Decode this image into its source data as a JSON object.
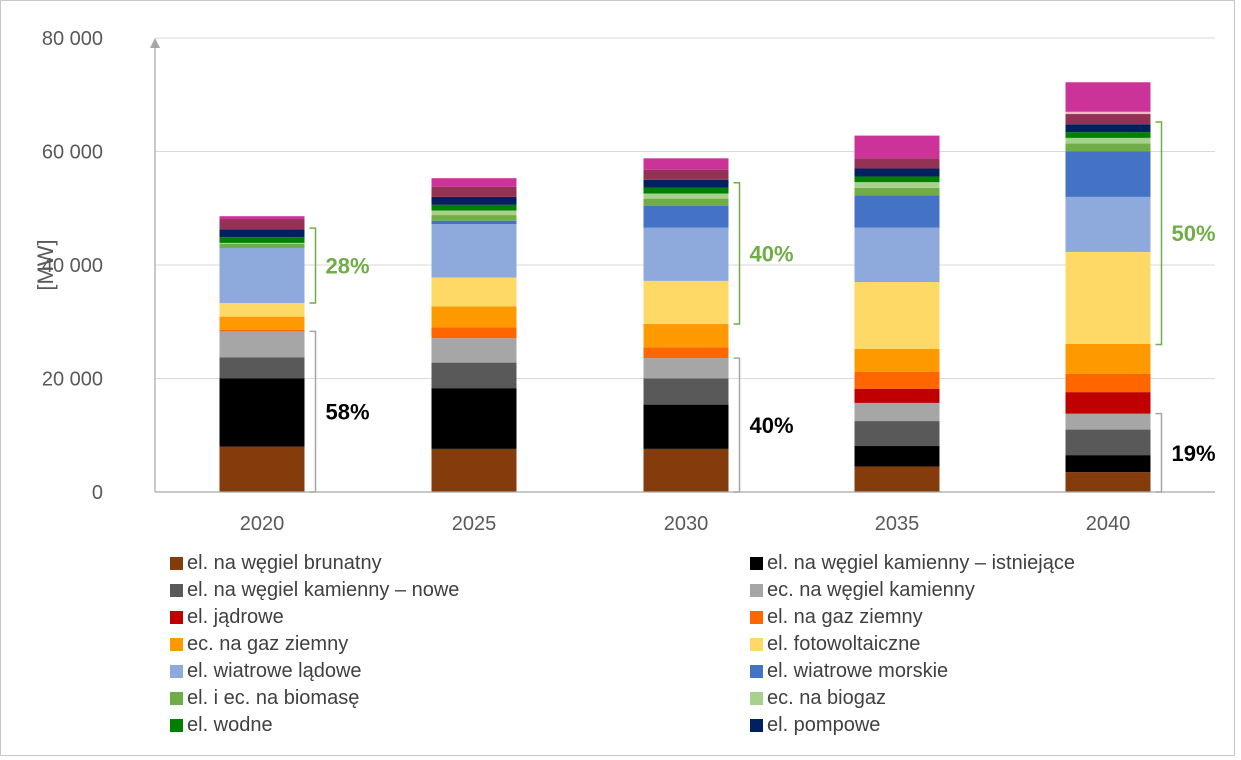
{
  "chart_data": {
    "type": "bar",
    "stacked": true,
    "ylabel": "[MW]",
    "ylim": [
      0,
      80000
    ],
    "y_ticks": [
      "0",
      "20 000",
      "40 000",
      "60 000",
      "80 000"
    ],
    "grid": true,
    "legend_position": "bottom",
    "categories": [
      "2020",
      "2025",
      "2030",
      "2035",
      "2040"
    ],
    "series": [
      {
        "name": "el. na węgiel brunatny",
        "color": "#843C0C",
        "values": [
          8000,
          7600,
          7600,
          4500,
          3500
        ]
      },
      {
        "name": "el. na węgiel kamienny – istniejące",
        "color": "#000000",
        "values": [
          12000,
          10700,
          7800,
          3600,
          3000
        ]
      },
      {
        "name": "el. na węgiel kamienny – nowe",
        "color": "#595959",
        "values": [
          3700,
          4500,
          4600,
          4400,
          4500
        ]
      },
      {
        "name": "ec. na węgiel kamienny",
        "color": "#A6A6A6",
        "values": [
          4600,
          4300,
          3600,
          3200,
          2800
        ]
      },
      {
        "name": "el. jądrowe",
        "color": "#C00000",
        "values": [
          0,
          0,
          0,
          2500,
          3800
        ]
      },
      {
        "name": "el. na gaz ziemny",
        "color": "#FF6600",
        "values": [
          300,
          1900,
          1900,
          3000,
          3200
        ]
      },
      {
        "name": "ec. na gaz ziemny",
        "color": "#FF9900",
        "values": [
          2300,
          3700,
          4100,
          4000,
          5300
        ]
      },
      {
        "name": "el. fotowoltaiczne",
        "color": "#FFD966",
        "values": [
          2400,
          5100,
          7600,
          11800,
          16200
        ]
      },
      {
        "name": "el. wiatrowe lądowe",
        "color": "#8EA9DB",
        "values": [
          9700,
          9400,
          9400,
          9600,
          9700
        ]
      },
      {
        "name": "el. wiatrowe morskie",
        "color": "#4472C4",
        "values": [
          0,
          600,
          3800,
          5700,
          8000
        ]
      },
      {
        "name": "el. i ec. na biomasę",
        "color": "#70AD47",
        "values": [
          700,
          1000,
          1300,
          1300,
          1400
        ]
      },
      {
        "name": "ec. na biogaz",
        "color": "#A9D18E",
        "values": [
          200,
          800,
          900,
          1000,
          1000
        ]
      },
      {
        "name": "el. wodne",
        "color": "#008000",
        "values": [
          1000,
          1000,
          1000,
          1000,
          1000
        ]
      },
      {
        "name": "el. pompowe",
        "color": "#002060",
        "values": [
          1400,
          1400,
          1400,
          1400,
          1400
        ]
      },
      {
        "name": "",
        "color": "#943255",
        "values": [
          1800,
          1800,
          1800,
          1800,
          1800
        ]
      },
      {
        "name": "",
        "color": "#F4B8C8",
        "values": [
          0,
          0,
          0,
          0,
          400
        ]
      },
      {
        "name": "",
        "color": "#CC3399",
        "values": [
          500,
          1500,
          2000,
          4000,
          5200
        ]
      }
    ],
    "legend": [
      {
        "label": "el. na węgiel brunatny",
        "color": "#843C0C"
      },
      {
        "label": "el. na węgiel kamienny – istniejące",
        "color": "#000000"
      },
      {
        "label": "el. na węgiel kamienny – nowe",
        "color": "#595959"
      },
      {
        "label": "ec. na węgiel kamienny",
        "color": "#A6A6A6"
      },
      {
        "label": "el. jądrowe",
        "color": "#C00000"
      },
      {
        "label": "el. na gaz ziemny",
        "color": "#FF6600"
      },
      {
        "label": "ec. na gaz ziemny",
        "color": "#FF9900"
      },
      {
        "label": "el. fotowoltaiczne",
        "color": "#FFD966"
      },
      {
        "label": "el. wiatrowe lądowe",
        "color": "#8EA9DB"
      },
      {
        "label": "el. wiatrowe morskie",
        "color": "#4472C4"
      },
      {
        "label": "el. i ec. na biomasę",
        "color": "#70AD47"
      },
      {
        "label": "ec. na biogaz",
        "color": "#A9D18E"
      },
      {
        "label": "el. wodne",
        "color": "#008000"
      },
      {
        "label": "el. pompowe",
        "color": "#002060"
      }
    ],
    "annotations": [
      {
        "text": "58%",
        "category": "2020",
        "y_from": 0,
        "y_to": 28300,
        "color": "#000000"
      },
      {
        "text": "28%",
        "category": "2020",
        "y_from": 33300,
        "y_to": 46500,
        "color": "#70AD47"
      },
      {
        "text": "40%",
        "category": "2030",
        "y_from": 0,
        "y_to": 23600,
        "color": "#000000"
      },
      {
        "text": "40%",
        "category": "2030",
        "y_from": 29600,
        "y_to": 54500,
        "color": "#70AD47"
      },
      {
        "text": "19%",
        "category": "2040",
        "y_from": 0,
        "y_to": 13800,
        "color": "#000000"
      },
      {
        "text": "50%",
        "category": "2040",
        "y_from": 26000,
        "y_to": 65200,
        "color": "#70AD47"
      }
    ],
    "axis_color": "#A6A6A6",
    "grid_color": "#D9D9D9"
  }
}
